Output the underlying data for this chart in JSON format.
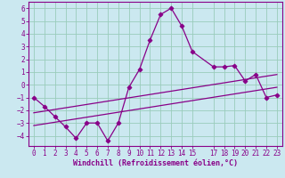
{
  "xlabel": "Windchill (Refroidissement éolien,°C)",
  "bg_color": "#cbe8f0",
  "line_color": "#880088",
  "grid_color": "#99ccbb",
  "xlim": [
    -0.5,
    23.5
  ],
  "ylim": [
    -4.8,
    6.5
  ],
  "xticks": [
    0,
    1,
    2,
    3,
    4,
    5,
    6,
    7,
    8,
    9,
    10,
    11,
    12,
    13,
    14,
    15,
    17,
    18,
    19,
    20,
    21,
    22,
    23
  ],
  "yticks": [
    -4,
    -3,
    -2,
    -1,
    0,
    1,
    2,
    3,
    4,
    5,
    6
  ],
  "line1_x": [
    0,
    1,
    2,
    3,
    4,
    5,
    6,
    7,
    8,
    9,
    10,
    11,
    12,
    13,
    14,
    15,
    17,
    18,
    19,
    20,
    21,
    22,
    23
  ],
  "line1_y": [
    -1.0,
    -1.7,
    -2.5,
    -3.3,
    -4.2,
    -3.0,
    -3.0,
    -4.4,
    -3.0,
    -0.2,
    1.2,
    3.5,
    5.5,
    6.0,
    4.6,
    2.6,
    1.4,
    1.4,
    1.5,
    0.3,
    0.8,
    -1.0,
    -0.8
  ],
  "line2_x": [
    0,
    23
  ],
  "line2_y": [
    -2.2,
    0.8
  ],
  "line3_x": [
    0,
    23
  ],
  "line3_y": [
    -3.2,
    -0.2
  ]
}
